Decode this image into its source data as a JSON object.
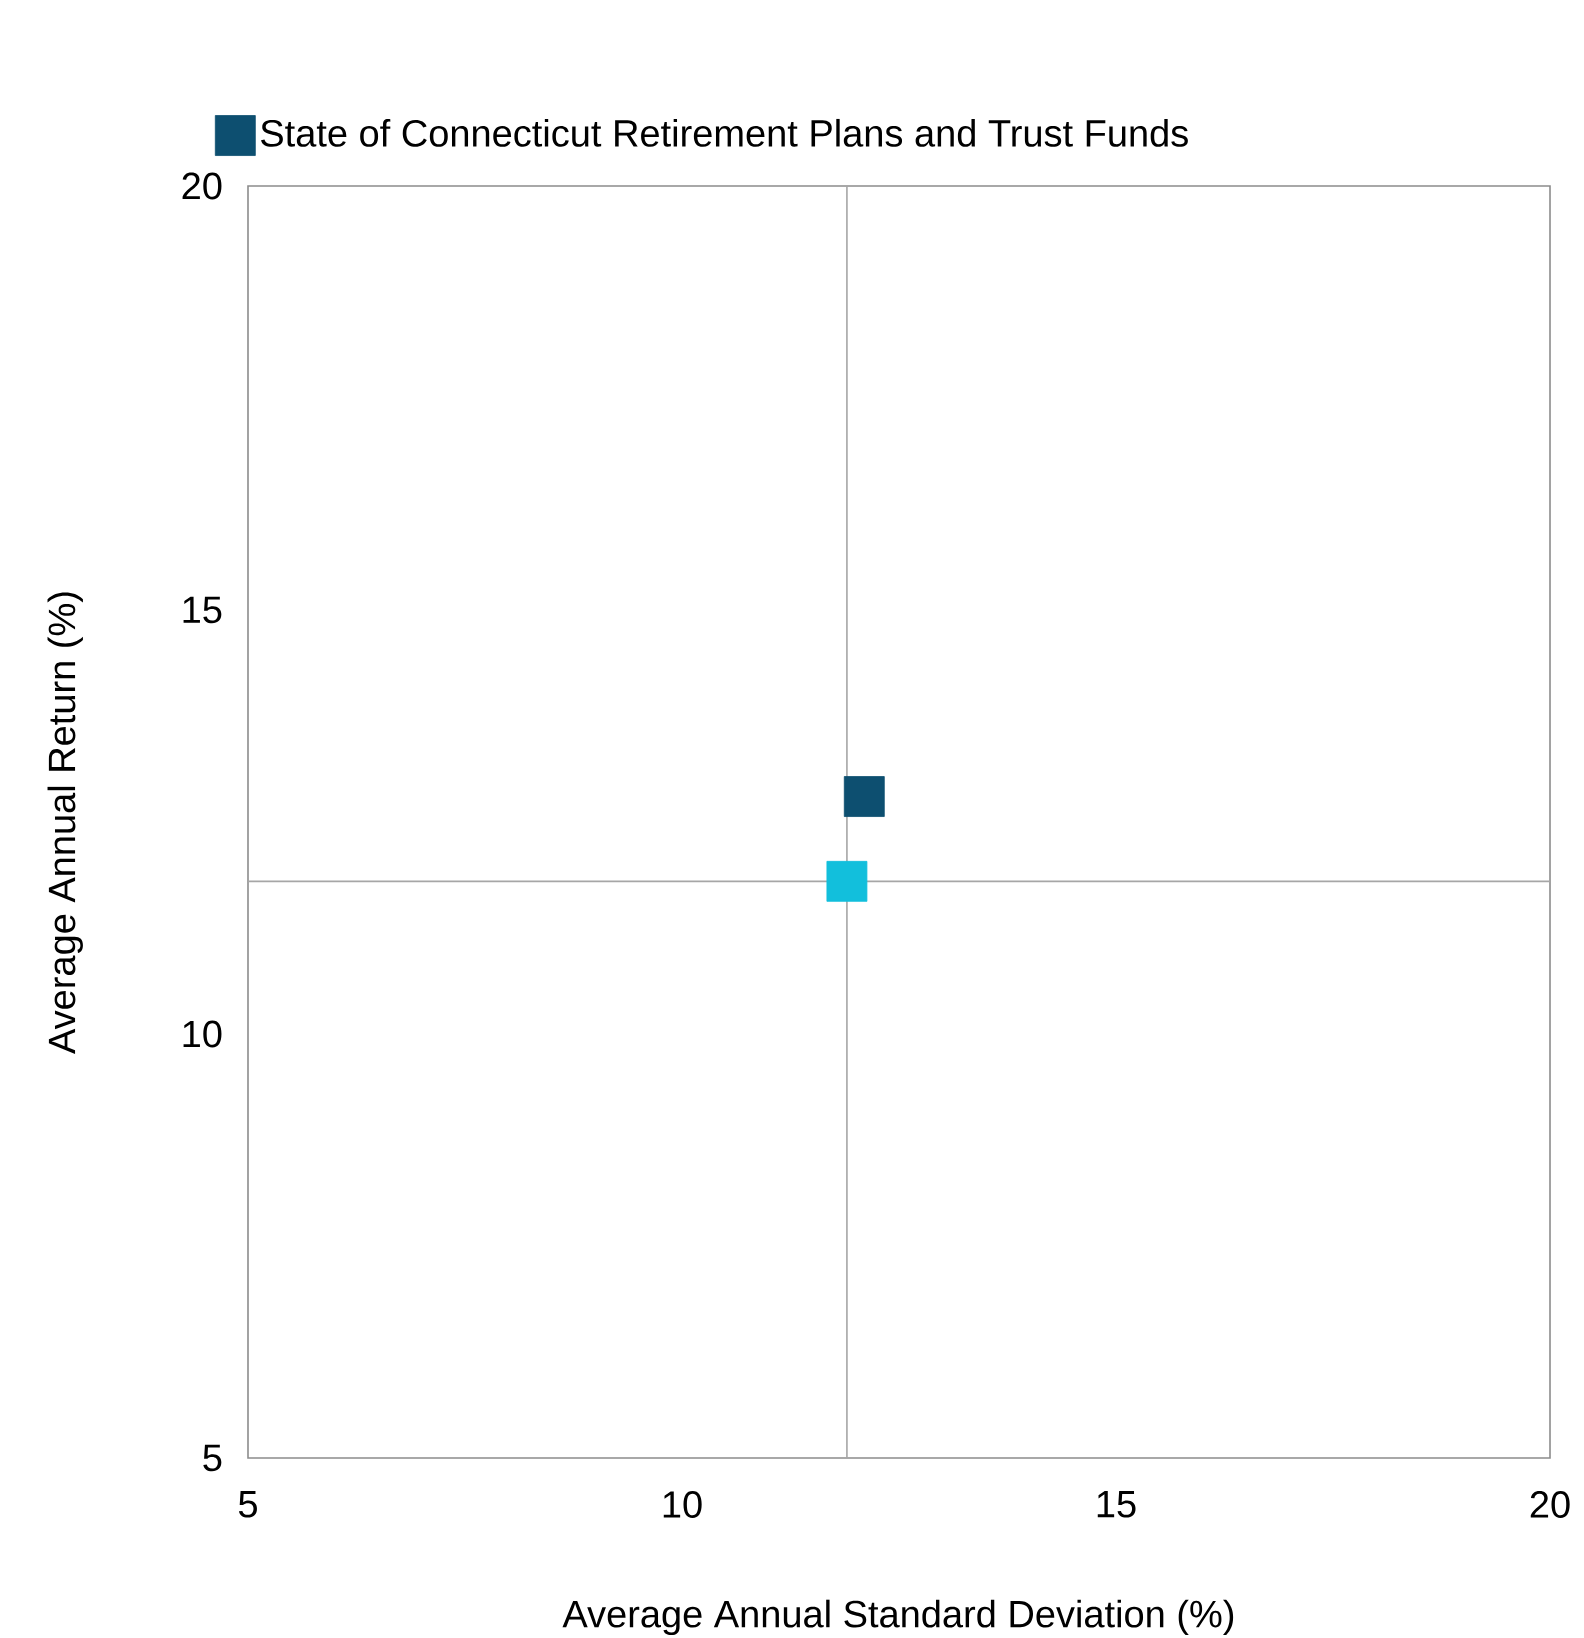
{
  "chart_data": {
    "type": "scatter",
    "xlabel": "Average Annual Standard Deviation (%)",
    "ylabel": "Average Annual Return (%)",
    "series": [
      {
        "name": "State of Connecticut Retirement Plans and Trust Funds",
        "color": "#0d4f70",
        "x": [
          12.1
        ],
        "values": [
          12.8
        ]
      },
      {
        "color": "#12bfdc",
        "x": [
          11.9
        ],
        "values": [
          11.8
        ]
      }
    ],
    "xlim": [
      5,
      20
    ],
    "ylim": [
      5,
      20
    ],
    "xticks": [
      5,
      10,
      15,
      20
    ],
    "yticks": [
      5,
      10,
      15,
      20
    ],
    "ref_lines": [
      {
        "axis": "x",
        "value": 11.9,
        "color": "#a6a6a6"
      },
      {
        "axis": "y",
        "value": 11.8,
        "color": "#a6a6a6"
      }
    ],
    "marker": "square",
    "legend": "top",
    "grid": false
  }
}
